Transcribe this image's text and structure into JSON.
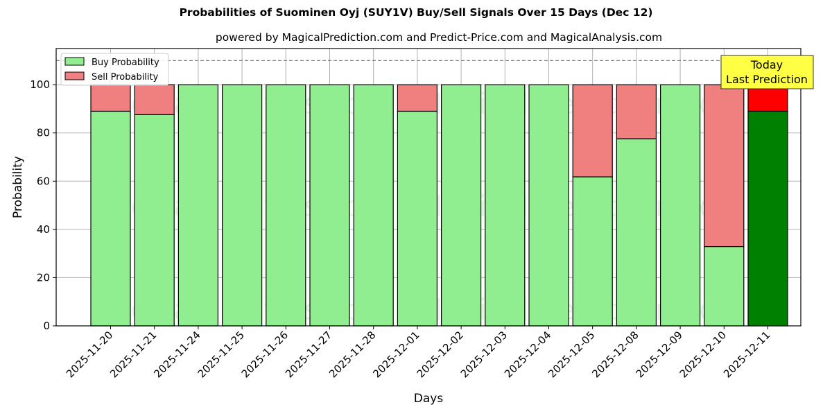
{
  "title": "Probabilities of Suominen Oyj (SUY1V) Buy/Sell Signals Over 15 Days (Dec 12)",
  "subtitle": "powered by MagicalPrediction.com and Predict-Price.com and MagicalAnalysis.com",
  "legend": {
    "buy": "Buy Probability",
    "sell": "Sell Probability"
  },
  "annotation": {
    "line1": "Today",
    "line2": "Last Prediction"
  },
  "watermarks": [
    "MagicalAnalysis.com",
    "MagicalPrediction.com"
  ],
  "colors": {
    "buy": "#90ee90",
    "sell": "#f08080",
    "buy_today": "#008000",
    "sell_today": "#ff0000",
    "annotation_bg": "#ffff44"
  },
  "chart_data": {
    "type": "bar",
    "stacked": true,
    "title": "Probabilities of Suominen Oyj (SUY1V) Buy/Sell Signals Over 15 Days (Dec 12)",
    "subtitle": "powered by MagicalPrediction.com and Predict-Price.com and MagicalAnalysis.com",
    "xlabel": "Days",
    "ylabel": "Probability",
    "ylim": [
      0,
      115
    ],
    "yticks": [
      0,
      20,
      40,
      60,
      80,
      100
    ],
    "reference_line": 110,
    "grid": true,
    "legend_position": "upper left",
    "categories": [
      "2025-11-20",
      "2025-11-21",
      "2025-11-24",
      "2025-11-25",
      "2025-11-26",
      "2025-11-27",
      "2025-11-28",
      "2025-12-01",
      "2025-12-02",
      "2025-12-03",
      "2025-12-04",
      "2025-12-05",
      "2025-12-08",
      "2025-12-09",
      "2025-12-10",
      "2025-12-11"
    ],
    "series": [
      {
        "name": "Buy Probability",
        "values": [
          89.0,
          87.6,
          100,
          100,
          100,
          100,
          100,
          89.0,
          100,
          100,
          100,
          61.8,
          77.6,
          100,
          32.9,
          89.0
        ]
      },
      {
        "name": "Sell Probability",
        "values": [
          11.0,
          12.4,
          0,
          0,
          0,
          0,
          0,
          11.0,
          0,
          0,
          0,
          38.2,
          22.4,
          0,
          67.1,
          11.0
        ]
      }
    ],
    "annotations": [
      "Today\nLast Prediction"
    ]
  }
}
